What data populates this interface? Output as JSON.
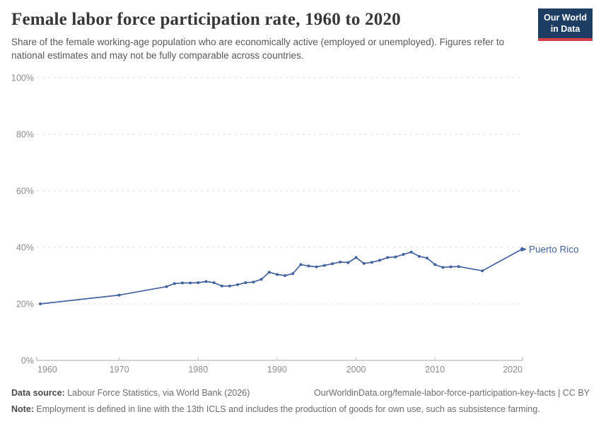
{
  "header": {
    "title": "Female labor force participation rate, 1960 to 2020",
    "subtitle": "Share of the female working-age population who are economically active (employed or unemployed). Figures refer to national estimates and may not be fully comparable across countries.",
    "logo": {
      "line1": "Our World",
      "line2": "in Data"
    }
  },
  "chart_data": {
    "type": "line",
    "title": "Female labor force participation rate, 1960 to 2020",
    "xlabel": "",
    "ylabel": "",
    "x_range": [
      1960,
      2021
    ],
    "ylim": [
      0,
      100
    ],
    "yticks": [
      0,
      20,
      40,
      60,
      80,
      100
    ],
    "ytick_suffix": "%",
    "xticks": [
      1960,
      1970,
      1980,
      1990,
      2000,
      2010,
      2020
    ],
    "grid": "dashed-horizontal",
    "legend_position": "end-of-line-label",
    "series": [
      {
        "name": "Puerto Rico",
        "color": "#44639e",
        "points": [
          [
            1960,
            20.0
          ],
          [
            1970,
            23.1
          ],
          [
            1976,
            26.1
          ],
          [
            1977,
            27.2
          ],
          [
            1978,
            27.4
          ],
          [
            1979,
            27.4
          ],
          [
            1980,
            27.5
          ],
          [
            1981,
            27.9
          ],
          [
            1982,
            27.5
          ],
          [
            1983,
            26.3
          ],
          [
            1984,
            26.3
          ],
          [
            1985,
            26.8
          ],
          [
            1986,
            27.5
          ],
          [
            1987,
            27.7
          ],
          [
            1988,
            28.7
          ],
          [
            1989,
            31.2
          ],
          [
            1990,
            30.4
          ],
          [
            1991,
            30.0
          ],
          [
            1992,
            30.7
          ],
          [
            1993,
            33.9
          ],
          [
            1994,
            33.4
          ],
          [
            1995,
            33.1
          ],
          [
            1996,
            33.6
          ],
          [
            1997,
            34.2
          ],
          [
            1998,
            34.8
          ],
          [
            1999,
            34.6
          ],
          [
            2000,
            36.4
          ],
          [
            2001,
            34.3
          ],
          [
            2002,
            34.7
          ],
          [
            2003,
            35.4
          ],
          [
            2004,
            36.4
          ],
          [
            2005,
            36.6
          ],
          [
            2006,
            37.5
          ],
          [
            2007,
            38.3
          ],
          [
            2008,
            36.8
          ],
          [
            2009,
            36.2
          ],
          [
            2010,
            33.9
          ],
          [
            2011,
            32.9
          ],
          [
            2012,
            33.1
          ],
          [
            2013,
            33.2
          ],
          [
            2016,
            31.7
          ],
          [
            2021,
            39.3
          ]
        ]
      }
    ]
  },
  "footer": {
    "source_label": "Data source:",
    "source_text": " Labour Force Statistics, via World Bank (2026)",
    "citation": "OurWorldinData.org/female-labor-force-participation-key-facts | CC BY",
    "note_label": "Note:",
    "note_text": " Employment is defined in line with the 13th ICLS and includes the production of goods for own use, such as subsistence farming."
  },
  "colors": {
    "accent_blue": "#44639e",
    "logo_bg": "#1d3d63",
    "logo_stripe": "#d4404a",
    "gridline": "#e2e2e2",
    "axis": "#a8a8a8",
    "tick_text": "#8c8c8c",
    "title_text": "#373737",
    "subtitle_text": "#595959"
  }
}
